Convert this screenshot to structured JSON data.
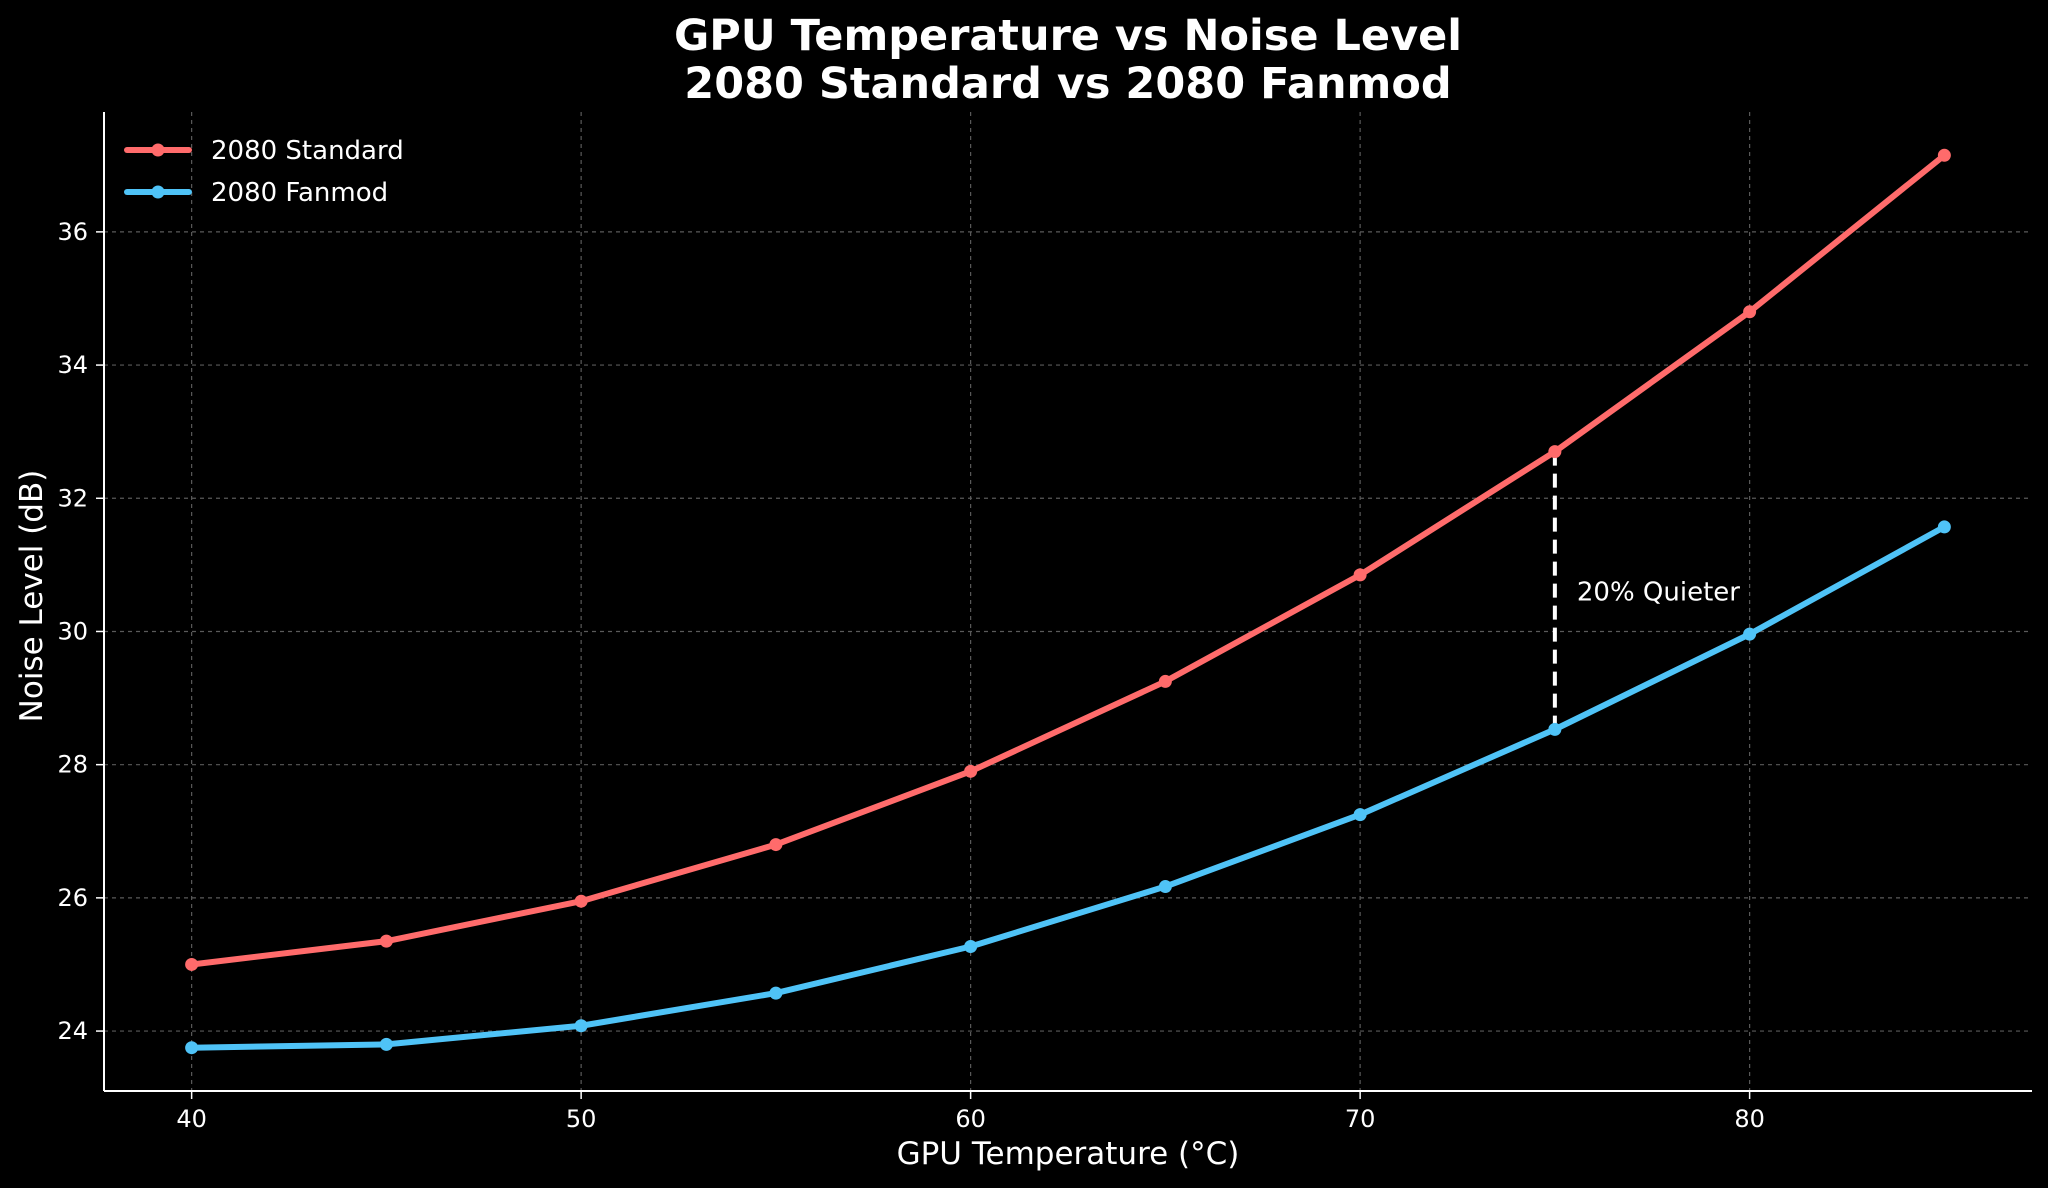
{
  "chart_data": {
    "type": "line",
    "title": "GPU Temperature vs Noise Level",
    "subtitle": "2080 Standard vs 2080 Fanmod",
    "xlabel": "GPU Temperature (°C)",
    "ylabel": "Noise Level (dB)",
    "x": [
      40,
      45,
      50,
      55,
      60,
      65,
      70,
      75,
      80,
      85
    ],
    "xlim": [
      37.75,
      87.25
    ],
    "ylim": [
      23.1,
      37.8
    ],
    "xticks": [
      40,
      50,
      60,
      70,
      80
    ],
    "yticks": [
      24,
      26,
      28,
      30,
      32,
      34,
      36
    ],
    "grid": true,
    "legend_position": "top-left",
    "series": [
      {
        "name": "2080 Standard",
        "color": "#ff6b6b",
        "values": [
          25.0,
          25.35,
          25.95,
          26.8,
          27.9,
          29.25,
          30.85,
          32.7,
          34.8,
          37.15
        ]
      },
      {
        "name": "2080 Fanmod",
        "color": "#4fc3f7",
        "values": [
          23.75,
          23.8,
          24.08,
          24.57,
          25.27,
          26.17,
          27.25,
          28.53,
          29.96,
          31.57
        ]
      }
    ],
    "annotation": {
      "text": "20% Quieter",
      "x": 75,
      "y_top": 32.7,
      "y_bottom": 28.53,
      "text_y": 30.6
    }
  }
}
